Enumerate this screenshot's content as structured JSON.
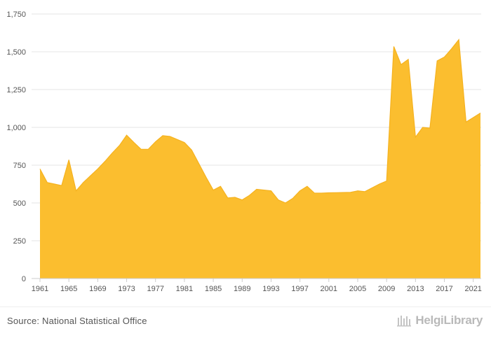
{
  "chart_data": {
    "type": "area",
    "x": [
      1961,
      1962,
      1963,
      1964,
      1965,
      1966,
      1967,
      1968,
      1969,
      1970,
      1971,
      1972,
      1973,
      1974,
      1975,
      1976,
      1977,
      1978,
      1979,
      1980,
      1981,
      1982,
      1983,
      1984,
      1985,
      1986,
      1987,
      1988,
      1989,
      1990,
      1991,
      1992,
      1993,
      1994,
      1995,
      1996,
      1997,
      1998,
      1999,
      2000,
      2001,
      2002,
      2003,
      2004,
      2005,
      2006,
      2007,
      2008,
      2009,
      2010,
      2011,
      2012,
      2013,
      2014,
      2015,
      2016,
      2017,
      2018,
      2019,
      2020,
      2021,
      2022
    ],
    "series": [
      {
        "values": [
          725,
          635,
          625,
          615,
          785,
          580,
          635,
          680,
          725,
          775,
          830,
          880,
          948,
          900,
          855,
          855,
          905,
          945,
          940,
          920,
          900,
          850,
          760,
          670,
          585,
          610,
          533,
          537,
          520,
          550,
          590,
          585,
          580,
          520,
          500,
          530,
          580,
          610,
          565,
          565,
          567,
          568,
          569,
          570,
          580,
          575,
          600,
          625,
          645,
          1535,
          1415,
          1450,
          935,
          1000,
          995,
          1440,
          1465,
          1520,
          1580,
          1035,
          1065,
          1095
        ]
      }
    ],
    "xtick_labels": [
      "1961",
      "1965",
      "1969",
      "1973",
      "1977",
      "1981",
      "1985",
      "1989",
      "1993",
      "1997",
      "2001",
      "2005",
      "2009",
      "2013",
      "2017",
      "2021"
    ],
    "ytick_labels": [
      "0",
      "250",
      "500",
      "750",
      "1,000",
      "1,250",
      "1,500",
      "1,750"
    ],
    "yticks": [
      0,
      250,
      500,
      750,
      1000,
      1250,
      1500,
      1750
    ],
    "ylim": [
      0,
      1750
    ],
    "xlim": [
      1961,
      2022
    ],
    "grid": true,
    "colors": {
      "fill": "#FBBE2F",
      "stroke": "#F5B21F",
      "grid": "#e6e6e6",
      "axis": "#cccccc",
      "tick_text": "#555555"
    }
  },
  "footer": {
    "source": "Source: National Statistical Office",
    "brand_name": "HelgiLibrary"
  }
}
